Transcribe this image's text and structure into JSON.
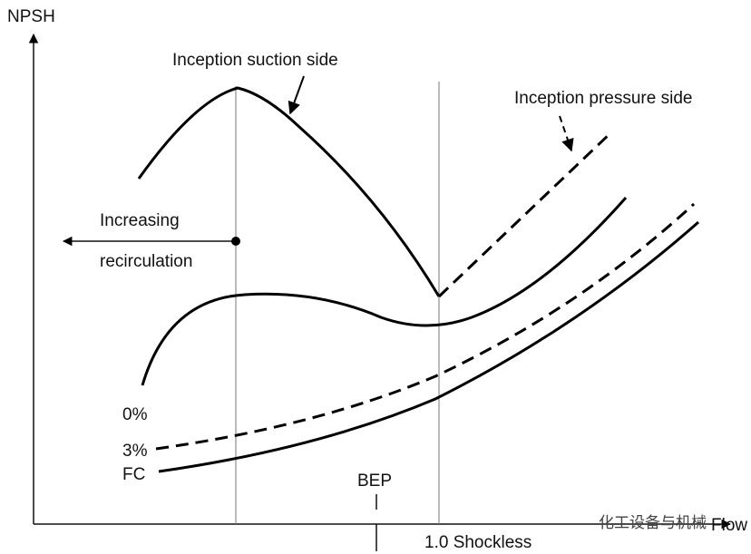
{
  "axes": {
    "y_label": "NPSH",
    "x_label": "Flow"
  },
  "annotations": {
    "suction": "Inception suction side",
    "pressure": "Inception pressure side",
    "recirculation_1": "Increasing",
    "recirculation_2": "recirculation"
  },
  "curve_labels": {
    "zero": "0%",
    "three": "3%",
    "fc": "FC"
  },
  "markers": {
    "bep": "BEP",
    "shockless": "1.0 Shockless"
  },
  "watermark": "化工设备与机械"
}
